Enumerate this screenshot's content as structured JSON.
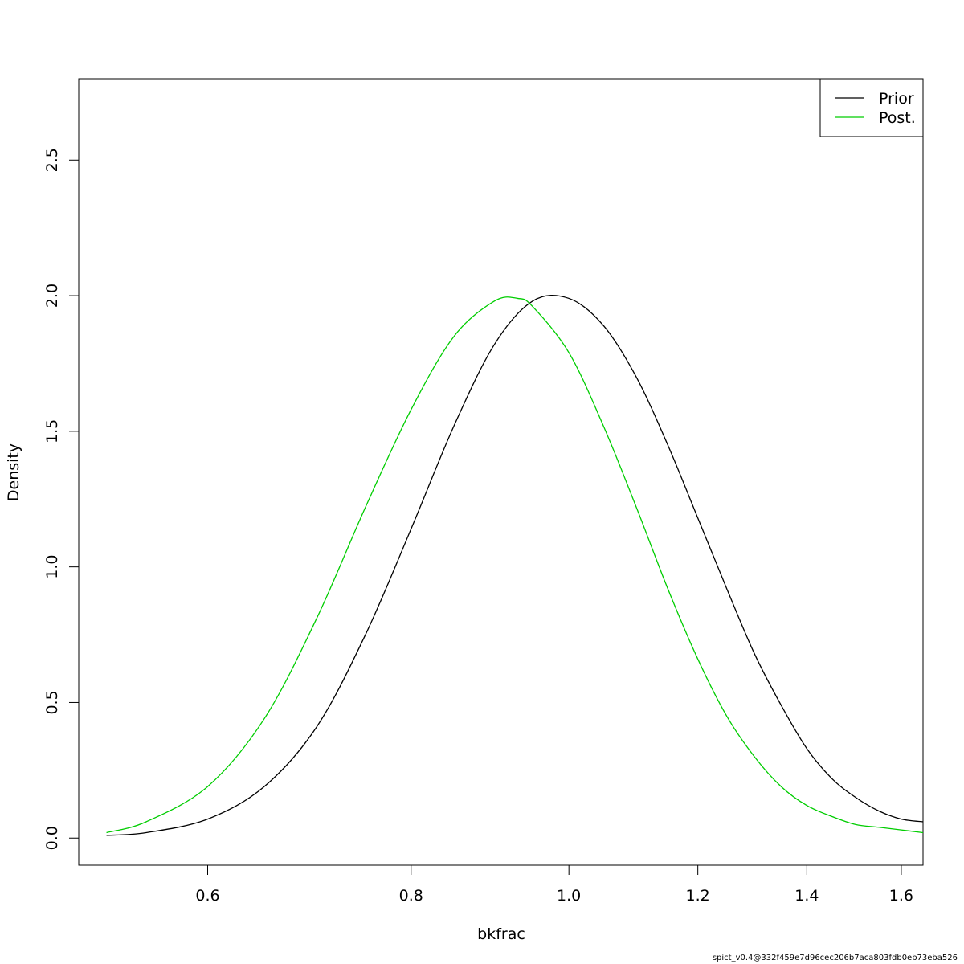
{
  "chart_data": {
    "type": "line",
    "xlabel": "bkfrac",
    "ylabel": "Density",
    "x_scale": "log",
    "xlim": [
      0.5,
      1.65
    ],
    "ylim": [
      -0.1,
      2.8
    ],
    "x_ticks": [
      0.6,
      0.8,
      1.0,
      1.2,
      1.4,
      1.6
    ],
    "x_tick_labels": [
      "0.6",
      "0.8",
      "1.0",
      "1.2",
      "1.4",
      "1.6"
    ],
    "y_ticks": [
      0.0,
      0.5,
      1.0,
      1.5,
      2.0,
      2.5
    ],
    "y_tick_labels": [
      "0.0",
      "0.5",
      "1.0",
      "1.5",
      "2.0",
      "2.5"
    ],
    "legend_position": "top-right",
    "grid": false,
    "series": [
      {
        "name": "Prior",
        "color": "#000000",
        "x": [
          0.52,
          0.55,
          0.6,
          0.65,
          0.7,
          0.75,
          0.8,
          0.85,
          0.9,
          0.95,
          1.0,
          1.05,
          1.1,
          1.15,
          1.2,
          1.25,
          1.3,
          1.35,
          1.4,
          1.45,
          1.5,
          1.55,
          1.6,
          1.65
        ],
        "y": [
          0.01,
          0.02,
          0.07,
          0.19,
          0.41,
          0.75,
          1.14,
          1.52,
          1.82,
          1.98,
          1.99,
          1.89,
          1.7,
          1.45,
          1.18,
          0.92,
          0.68,
          0.49,
          0.33,
          0.22,
          0.15,
          0.1,
          0.07,
          0.06
        ]
      },
      {
        "name": "Post.",
        "color": "#00cd00",
        "x": [
          0.52,
          0.55,
          0.6,
          0.65,
          0.7,
          0.75,
          0.8,
          0.85,
          0.9,
          0.93,
          0.95,
          1.0,
          1.05,
          1.1,
          1.15,
          1.2,
          1.25,
          1.3,
          1.35,
          1.4,
          1.45,
          1.5,
          1.55,
          1.6,
          1.65
        ],
        "y": [
          0.02,
          0.06,
          0.19,
          0.44,
          0.81,
          1.22,
          1.58,
          1.85,
          1.98,
          1.99,
          1.96,
          1.79,
          1.52,
          1.22,
          0.92,
          0.66,
          0.45,
          0.3,
          0.19,
          0.12,
          0.08,
          0.05,
          0.04,
          0.03,
          0.02
        ]
      }
    ]
  },
  "footer_text": "spict_v0.4@332f459e7d96cec206b7aca803fdb0eb73eba526"
}
